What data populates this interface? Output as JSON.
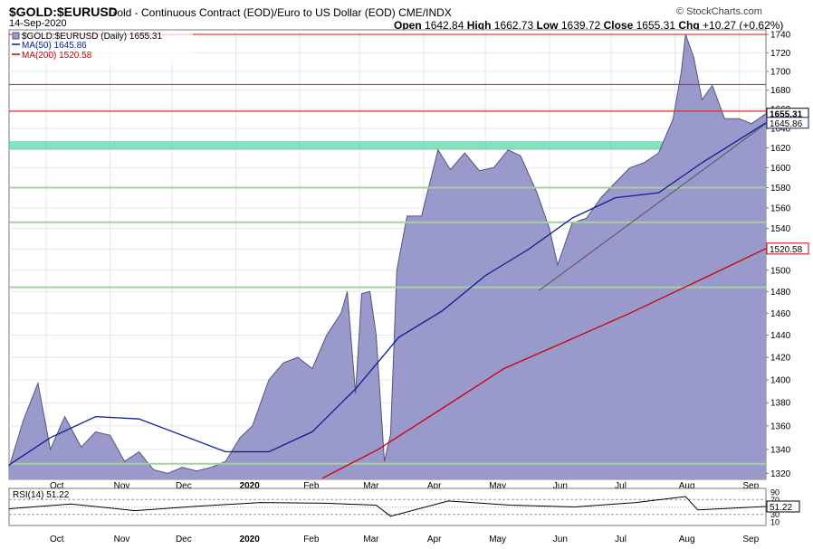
{
  "header": {
    "symbol": "$GOLD:$EURUSD",
    "description": "Gold - Continuous Contract (EOD)/Euro to US Dollar (EOD)",
    "exchange": "CME/INDX",
    "date": "14-Sep-2020",
    "brand": "© StockCharts.com",
    "ohlc": {
      "open_label": "Open",
      "open": "1642.84",
      "high_label": "High",
      "high": "1662.73",
      "low_label": "Low",
      "low": "1639.72",
      "close_label": "Close",
      "close": "1655.31",
      "chg_label": "Chg",
      "chg": "+10.27 (+0.62%)"
    }
  },
  "legend": {
    "price": "$GOLD:$EURUSD (Daily) 1655.31",
    "ma50": "MA(50) 1645.86",
    "ma200": "MA(200) 1520.58"
  },
  "price_tags": {
    "close": "1655.31",
    "ma50": "1645.86",
    "ma200": "1520.58"
  },
  "rsi": {
    "label": "RSI(14) 51.22",
    "value_tag": "51.22",
    "ticks": [
      "90",
      "70",
      "30",
      "10"
    ]
  },
  "colors": {
    "area_fill": "#9999cc",
    "area_line": "#55557a",
    "ma50": "#0b1f8f",
    "ma200": "#cc0000",
    "resistance": "#cc3333",
    "support": "#a8cfa0",
    "zone": "#5fd6a6",
    "grid": "#e6e6e6",
    "trendline": "#555555"
  },
  "chart_data": {
    "type": "area",
    "title": "$GOLD:$EURUSD",
    "yscale": "log",
    "ylim": [
      1315,
      1745
    ],
    "y_ticks": [
      1320,
      1340,
      1360,
      1380,
      1400,
      1420,
      1440,
      1460,
      1480,
      1500,
      1520,
      1540,
      1560,
      1580,
      1600,
      1620,
      1640,
      1660,
      1680,
      1700,
      1720,
      1740
    ],
    "x_labels": [
      "Oct",
      "Nov",
      "Dec",
      "2020",
      "Feb",
      "Mar",
      "Apr",
      "May",
      "Jun",
      "Jul",
      "Aug",
      "Sep"
    ],
    "x_range": [
      "2019-09-13",
      "2020-09-14"
    ],
    "x_ticks": [
      "2019-10-01",
      "2019-11-01",
      "2019-12-01",
      "2020-01-01",
      "2020-02-01",
      "2020-03-01",
      "2020-04-01",
      "2020-05-01",
      "2020-06-01",
      "2020-07-01",
      "2020-08-01",
      "2020-09-01"
    ],
    "grid": true,
    "series": [
      {
        "name": "$GOLD:$EURUSD (Daily)",
        "dates": [
          "2019-09-13",
          "2019-09-20",
          "2019-09-27",
          "2019-10-03",
          "2019-10-10",
          "2019-10-18",
          "2019-10-25",
          "2019-11-01",
          "2019-11-08",
          "2019-11-15",
          "2019-11-22",
          "2019-11-29",
          "2019-12-06",
          "2019-12-13",
          "2019-12-20",
          "2019-12-27",
          "2020-01-03",
          "2020-01-09",
          "2020-01-17",
          "2020-01-24",
          "2020-01-31",
          "2020-02-07",
          "2020-02-14",
          "2020-02-21",
          "2020-02-24",
          "2020-02-28",
          "2020-03-02",
          "2020-03-06",
          "2020-03-09",
          "2020-03-13",
          "2020-03-16",
          "2020-03-19",
          "2020-03-24",
          "2020-03-31",
          "2020-04-08",
          "2020-04-14",
          "2020-04-21",
          "2020-04-28",
          "2020-05-05",
          "2020-05-12",
          "2020-05-18",
          "2020-05-26",
          "2020-06-01",
          "2020-06-05",
          "2020-06-12",
          "2020-06-19",
          "2020-06-26",
          "2020-07-03",
          "2020-07-10",
          "2020-07-17",
          "2020-07-24",
          "2020-07-31",
          "2020-08-04",
          "2020-08-06",
          "2020-08-10",
          "2020-08-14",
          "2020-08-19",
          "2020-08-25",
          "2020-09-01",
          "2020-09-07",
          "2020-09-14"
        ],
        "values": [
          1325,
          1365,
          1397,
          1340,
          1368,
          1342,
          1355,
          1352,
          1330,
          1338,
          1323,
          1320,
          1325,
          1322,
          1325,
          1330,
          1350,
          1360,
          1400,
          1415,
          1420,
          1410,
          1440,
          1460,
          1480,
          1388,
          1478,
          1480,
          1440,
          1330,
          1353,
          1500,
          1552,
          1552,
          1618,
          1598,
          1615,
          1597,
          1600,
          1618,
          1612,
          1575,
          1540,
          1505,
          1545,
          1550,
          1570,
          1585,
          1600,
          1605,
          1615,
          1650,
          1700,
          1740,
          1715,
          1670,
          1685,
          1650,
          1650,
          1645,
          1655.31
        ]
      },
      {
        "name": "MA(50)",
        "dates": [
          "2019-09-13",
          "2019-10-03",
          "2019-10-25",
          "2019-11-15",
          "2019-12-06",
          "2019-12-27",
          "2020-01-17",
          "2020-02-07",
          "2020-02-28",
          "2020-03-20",
          "2020-04-10",
          "2020-05-01",
          "2020-05-22",
          "2020-06-12",
          "2020-07-03",
          "2020-07-24",
          "2020-08-14",
          "2020-09-14"
        ],
        "values": [
          1327,
          1350,
          1368,
          1366,
          1352,
          1338,
          1338,
          1355,
          1392,
          1438,
          1462,
          1495,
          1520,
          1550,
          1570,
          1575,
          1605,
          1645.86
        ]
      },
      {
        "name": "MA(200)",
        "dates": [
          "2020-02-12",
          "2020-03-10",
          "2020-04-10",
          "2020-05-10",
          "2020-06-10",
          "2020-07-10",
          "2020-08-10",
          "2020-09-14"
        ],
        "values": [
          1316,
          1340,
          1375,
          1410,
          1435,
          1460,
          1488,
          1520.58
        ]
      }
    ],
    "horizontal_lines": [
      {
        "kind": "resistance",
        "value": 1740
      },
      {
        "kind": "resistance",
        "value": 1686
      },
      {
        "kind": "resistance",
        "value": 1658
      },
      {
        "kind": "support",
        "value": 1580
      },
      {
        "kind": "support",
        "value": 1546
      },
      {
        "kind": "support",
        "value": 1484
      },
      {
        "kind": "support",
        "value": 1328
      }
    ],
    "zones": [
      {
        "from": 1618,
        "to": 1627
      }
    ],
    "trendlines": [
      {
        "dates": [
          "2020-05-27",
          "2020-09-14"
        ],
        "values": [
          1481,
          1645
        ]
      }
    ],
    "rsi_series": {
      "name": "RSI(14)",
      "ylim": [
        0,
        100
      ],
      "dates": [
        "2019-09-13",
        "2019-10-13",
        "2019-11-13",
        "2019-12-13",
        "2020-01-13",
        "2020-02-13",
        "2020-03-09",
        "2020-03-16",
        "2020-04-13",
        "2020-05-13",
        "2020-06-13",
        "2020-07-13",
        "2020-08-06",
        "2020-08-12",
        "2020-09-14"
      ],
      "values": [
        45,
        58,
        40,
        52,
        62,
        60,
        55,
        25,
        66,
        55,
        50,
        62,
        78,
        42,
        51.22
      ]
    }
  }
}
